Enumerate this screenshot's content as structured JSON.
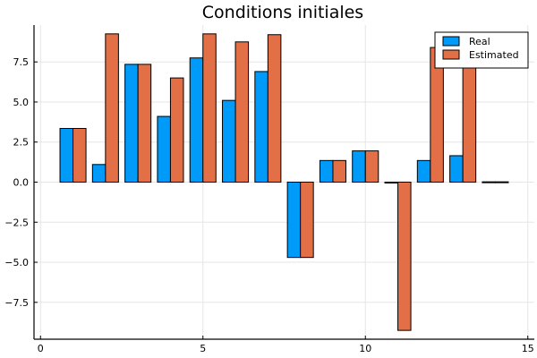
{
  "chart_data": {
    "type": "bar",
    "title": "Conditions initiales",
    "xlabel": "",
    "ylabel": "",
    "x": [
      1,
      2,
      3,
      4,
      5,
      6,
      7,
      8,
      9,
      10,
      11,
      12,
      13,
      14
    ],
    "series": [
      {
        "name": "Real",
        "color": "#009af9",
        "values": [
          3.35,
          1.1,
          7.35,
          4.1,
          7.75,
          5.1,
          6.9,
          -4.7,
          1.35,
          1.95,
          -0.05,
          1.35,
          1.65,
          0.02
        ]
      },
      {
        "name": "Estimated",
        "color": "#e26f46",
        "values": [
          3.35,
          9.25,
          7.35,
          6.5,
          9.25,
          8.75,
          9.2,
          -4.7,
          1.35,
          1.95,
          -9.25,
          8.4,
          9.1,
          0.02
        ]
      }
    ],
    "xlim": [
      -0.2,
      15.2
    ],
    "ylim": [
      -9.8,
      9.8
    ],
    "xticks": [
      0,
      5,
      10,
      15
    ],
    "xtick_labels": [
      "0",
      "5",
      "10",
      "15"
    ],
    "yticks": [
      -7.5,
      -5.0,
      -2.5,
      0.0,
      2.5,
      5.0,
      7.5
    ],
    "ytick_labels": [
      "−7.5",
      "−5.0",
      "−2.5",
      "0.0",
      "2.5",
      "5.0",
      "7.5"
    ],
    "grid": true,
    "legend_position": "top-right"
  }
}
